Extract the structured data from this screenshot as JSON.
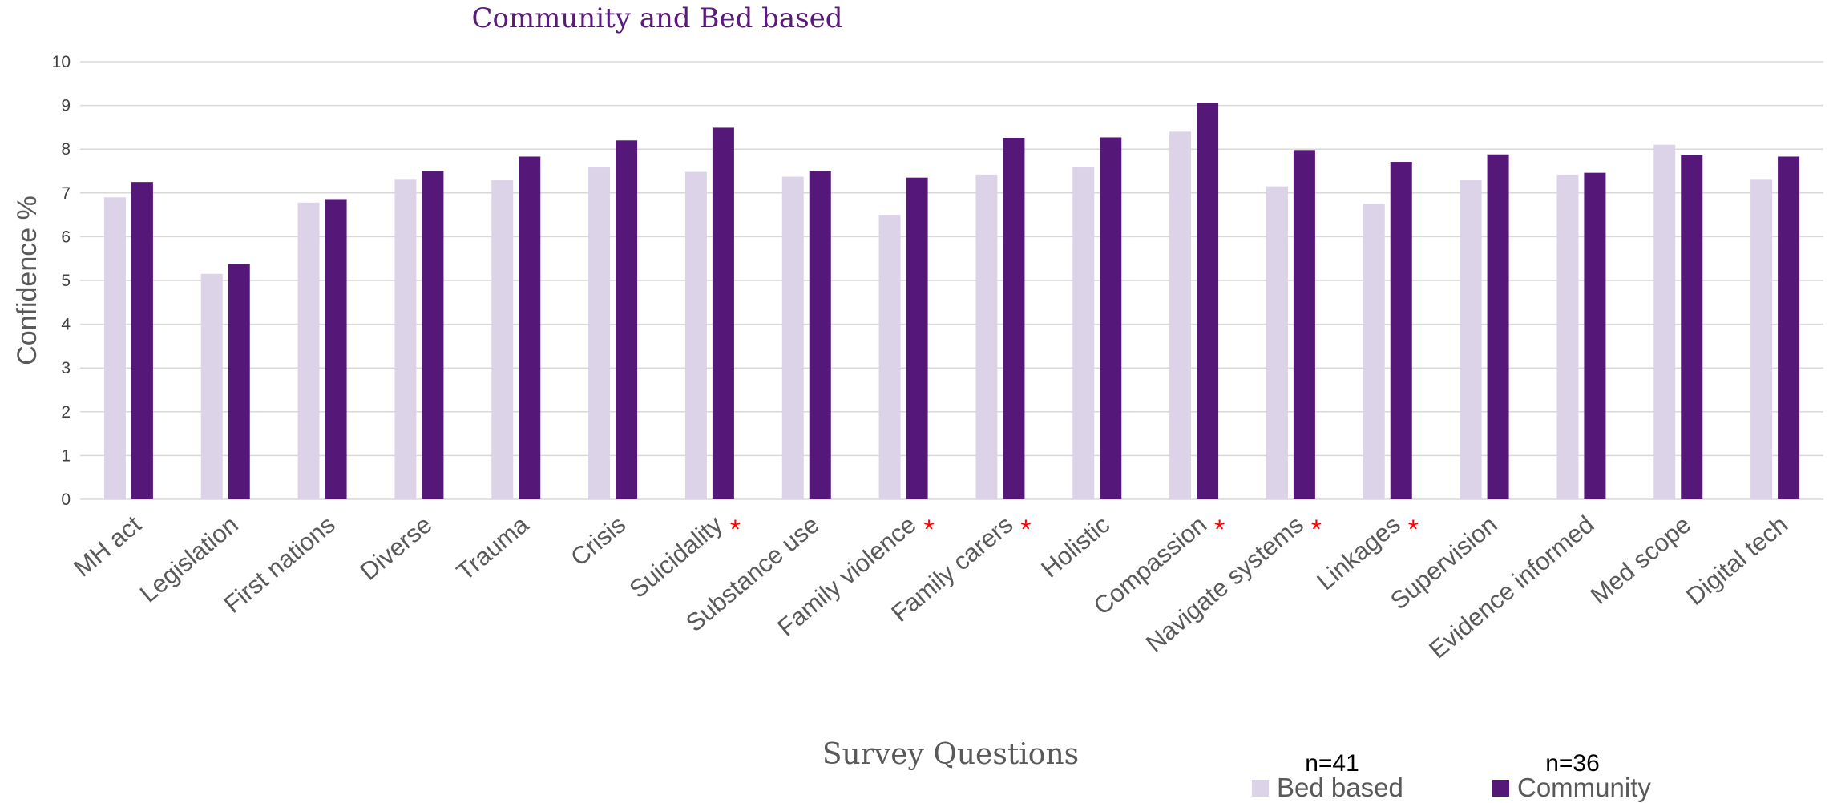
{
  "chart_data": {
    "type": "bar",
    "title": "Community and Bed based",
    "xlabel": "Survey Questions",
    "ylabel": "Confidence %",
    "ylim": [
      0,
      10
    ],
    "yticks": [
      "0",
      "1",
      "2",
      "3",
      "4",
      "5",
      "6",
      "7",
      "8",
      "9",
      "10"
    ],
    "grid": true,
    "legend_position": "bottom-right",
    "categories": [
      "MH act",
      "Legislation",
      "First nations",
      "Diverse",
      "Trauma",
      "Crisis",
      "Suicidality",
      "Substance use",
      "Family violence",
      "Family carers",
      "Holistic",
      "Compassion",
      "Navigate systems",
      "Linkages",
      "Supervision",
      "Evidence informed",
      "Med scope",
      "Digital tech"
    ],
    "significance_marker": "*",
    "marked_categories": [
      6,
      8,
      9,
      11,
      12,
      13
    ],
    "series": [
      {
        "name": "Bed based",
        "n_label": "n=41",
        "color": "#dcd3e8",
        "values": [
          6.9,
          5.15,
          6.78,
          7.32,
          7.3,
          7.6,
          7.48,
          7.37,
          6.5,
          7.42,
          7.6,
          8.4,
          7.15,
          6.75,
          7.3,
          7.42,
          8.1,
          7.32
        ]
      },
      {
        "name": "Community",
        "n_label": "n=36",
        "color": "#561878",
        "values": [
          7.25,
          5.37,
          6.86,
          7.5,
          7.83,
          8.2,
          8.49,
          7.5,
          7.35,
          8.26,
          8.27,
          9.06,
          7.98,
          7.71,
          7.88,
          7.46,
          7.86,
          7.83
        ]
      }
    ]
  }
}
